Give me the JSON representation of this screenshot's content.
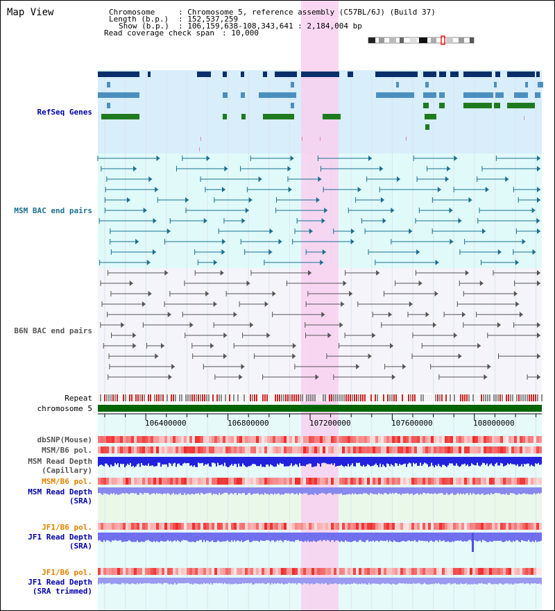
{
  "header": {
    "title": "Map View",
    "chromosome_key": "Chromosome",
    "chromosome_value": ": Chromosome 5, reference assembly (C57BL/6J) (Build 37)",
    "length_key": "Length (b.p.)",
    "length_value": ": 152,537,259",
    "show_key": "Show (b.p.)",
    "show_value": ": 106,159,638-108,343,641 : 2,184,004 bp",
    "coverage_key": "Read coverage check span",
    "coverage_value": ": 10,000"
  },
  "tracks": {
    "refseq": "RefSeq Genes",
    "msm_bac": "MSM BAC end pairs",
    "b6n_bac": "B6N BAC end pairs",
    "repeat": "Repeat",
    "chromosome": "chromosome 5",
    "dbsnp": "dbSNP(Mouse)",
    "msm_b6_pol": "MSM/B6 pol.",
    "msm_depth_cap_1": "MSM Read Depth",
    "msm_depth_cap_2": "(Capillary)",
    "msm_b6_pol2": "MSM/B6 pol.",
    "msm_depth_sra_1": "MSM Read Depth",
    "msm_depth_sra_2": "(SRA)",
    "jf1_b6_pol": "JF1/B6 pol.",
    "jf1_depth_sra_1": "JF1 Read Depth",
    "jf1_depth_sra_2": "(SRA)",
    "jf1_b6_pol2": "JF1/B6 pol.",
    "jf1_depth_trim_1": "JF1 Read Depth",
    "jf1_depth_trim_2": "(SRA trimmed)"
  },
  "axis": {
    "ticks": [
      "106400000",
      "106800000",
      "107200000",
      "107600000",
      "108000000"
    ]
  },
  "colors": {
    "highlight": "#f8d0f0",
    "refseq_bg": "#d8eefa",
    "msm_bg": "#e0fafa",
    "b6n_bg": "#f4f4fa",
    "lower_bg": "#e6fafa",
    "refseq_dark": "#0a2f6a",
    "refseq_mid": "#4b8fbf",
    "refseq_green": "#1f7a1f",
    "msm_line": "#1a6f8f",
    "b6n_line": "#555555",
    "chromosome_bar": "#006400",
    "label_blue": "#0000aa",
    "label_orange": "#e08000",
    "label_teal": "#1a6f8f"
  }
}
